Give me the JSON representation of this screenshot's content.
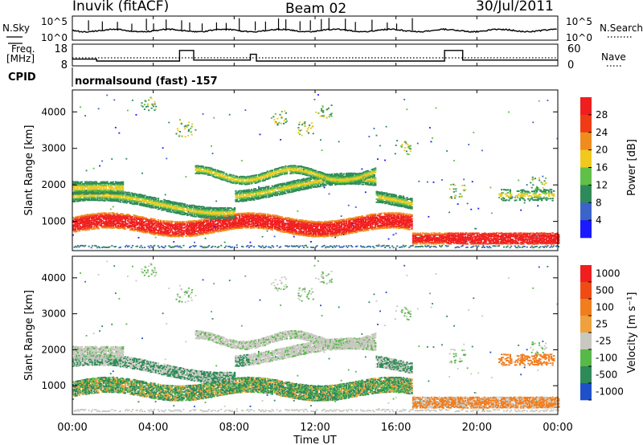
{
  "header": {
    "station": "Inuvik (fitACF)",
    "beam": "Beam 02",
    "date": "30/Jul/2011"
  },
  "panels": {
    "nsky_label": "N.Sky",
    "nsearch_label": "N.Search",
    "freq_label_1": "Freq.",
    "freq_label_2": "[MHz]",
    "nave_label": "Nave",
    "cpid_label": "CPID",
    "cpid_text": "normalsound (fast) -157"
  },
  "chart_data": [
    {
      "type": "line",
      "name": "noise-panel",
      "y_left_ticks": [
        "10^5",
        "10^0"
      ],
      "y_right_ticks": [
        "10^5",
        "10^0"
      ],
      "log_scale": true
    },
    {
      "type": "line",
      "name": "frequency-nave-panel",
      "y_left_ticks": [
        "18",
        "8"
      ],
      "y_right_ticks": [
        "60",
        "0"
      ],
      "freq_segments": [
        {
          "start": 0.0,
          "end": 1.2,
          "value": 11.5
        },
        {
          "start": 1.2,
          "end": 5.3,
          "value": 10.5
        },
        {
          "start": 5.3,
          "end": 6.0,
          "value": 16.0
        },
        {
          "start": 6.0,
          "end": 8.8,
          "value": 11.0
        },
        {
          "start": 8.8,
          "end": 9.1,
          "value": 14.0
        },
        {
          "start": 9.1,
          "end": 18.4,
          "value": 10.5
        },
        {
          "start": 18.4,
          "end": 19.3,
          "value": 16.0
        },
        {
          "start": 19.3,
          "end": 24.0,
          "value": 11.0
        }
      ]
    },
    {
      "type": "heatmap",
      "name": "power",
      "ylabel": "Slant Range [km]",
      "y_ticks": [
        "1000",
        "2000",
        "3000",
        "4000"
      ],
      "ylim": [
        200,
        4600
      ],
      "colorbar_label": "Power [dB]",
      "colorbar_ticks": [
        "4",
        "8",
        "12",
        "16",
        "20",
        "24",
        "28"
      ],
      "colors": [
        "#1a1aff",
        "#3c64c8",
        "#2e8a58",
        "#60c048",
        "#f0c81e",
        "#f08c1e",
        "#f03c14",
        "#f01e1e"
      ]
    },
    {
      "type": "heatmap",
      "name": "velocity",
      "ylabel": "Slant Range [km]",
      "y_ticks": [
        "1000",
        "2000",
        "3000",
        "4000"
      ],
      "ylim": [
        200,
        4600
      ],
      "colorbar_label": "Velocity [m s⁻¹]",
      "colorbar_ticks": [
        "1000",
        "500",
        "100",
        "25",
        "-25",
        "-100",
        "-500",
        "-1000"
      ],
      "colors": [
        "#2050c8",
        "#2e8a58",
        "#58b848",
        "#c8c8c0",
        "#f0a03c",
        "#f07d1e",
        "#f04b14",
        "#f01e1e"
      ]
    }
  ],
  "time_axis": {
    "label": "Time UT",
    "ticks": [
      "00:00",
      "04:00",
      "08:00",
      "12:00",
      "16:00",
      "20:00",
      "00:00"
    ]
  }
}
